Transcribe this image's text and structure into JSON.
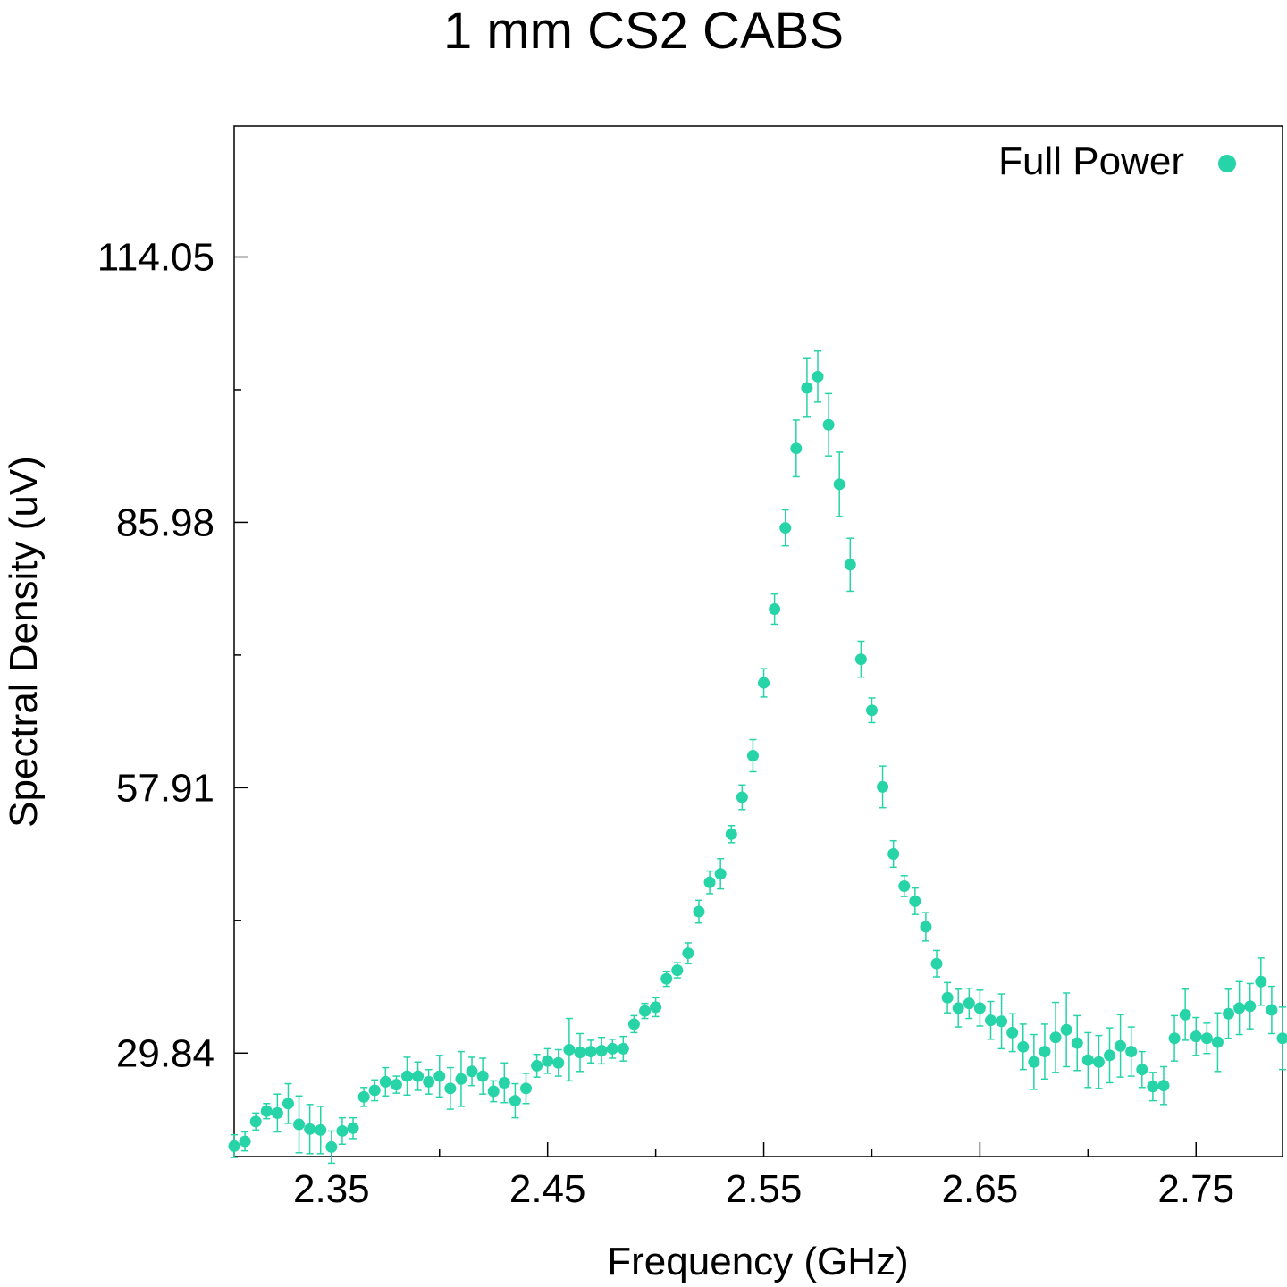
{
  "chart_data": {
    "type": "scatter",
    "title": "1 mm CS2 CABS",
    "xlabel": "Frequency (GHz)",
    "ylabel": "Spectral Density (uV)",
    "xlim": [
      2.305,
      2.79
    ],
    "ylim": [
      18.9,
      127.9
    ],
    "xticks": [
      2.35,
      2.45,
      2.55,
      2.65,
      2.75
    ],
    "xtick_labels": [
      "2.35",
      "2.45",
      "2.55",
      "2.65",
      "2.75"
    ],
    "yticks": [
      29.84,
      57.91,
      85.98,
      114.05
    ],
    "ytick_labels": [
      "29.84",
      "57.91",
      "85.98",
      "114.05"
    ],
    "grid": false,
    "legend_position": "top-right",
    "color": "#26d4a8",
    "series": [
      {
        "name": "Full Power",
        "x": [
          2.305,
          2.31,
          2.315,
          2.32,
          2.325,
          2.33,
          2.335,
          2.34,
          2.345,
          2.35,
          2.355,
          2.36,
          2.365,
          2.37,
          2.375,
          2.38,
          2.385,
          2.39,
          2.395,
          2.4,
          2.405,
          2.41,
          2.415,
          2.42,
          2.425,
          2.43,
          2.435,
          2.44,
          2.445,
          2.45,
          2.455,
          2.46,
          2.465,
          2.47,
          2.475,
          2.48,
          2.485,
          2.49,
          2.495,
          2.5,
          2.505,
          2.51,
          2.515,
          2.52,
          2.525,
          2.53,
          2.535,
          2.54,
          2.545,
          2.55,
          2.555,
          2.56,
          2.565,
          2.57,
          2.575,
          2.58,
          2.585,
          2.59,
          2.595,
          2.6,
          2.605,
          2.61,
          2.615,
          2.62,
          2.625,
          2.63,
          2.635,
          2.64,
          2.645,
          2.65,
          2.655,
          2.66,
          2.665,
          2.67,
          2.675,
          2.68,
          2.685,
          2.69,
          2.695,
          2.7,
          2.705,
          2.71,
          2.715,
          2.72,
          2.725,
          2.73,
          2.735,
          2.74,
          2.745,
          2.75,
          2.755,
          2.76,
          2.765,
          2.77,
          2.775,
          2.78,
          2.785,
          2.79
        ],
        "y": [
          20.0,
          20.5,
          22.6,
          23.7,
          23.5,
          24.5,
          22.3,
          21.8,
          21.7,
          19.9,
          21.6,
          21.9,
          25.2,
          25.9,
          26.8,
          26.5,
          27.4,
          27.4,
          26.8,
          27.4,
          26.1,
          27.1,
          27.9,
          27.4,
          25.8,
          26.7,
          24.8,
          26.1,
          28.5,
          29.0,
          28.8,
          30.2,
          29.9,
          30.0,
          30.1,
          30.3,
          30.3,
          32.9,
          34.3,
          34.7,
          37.7,
          38.6,
          40.4,
          44.8,
          47.9,
          48.8,
          53.0,
          56.9,
          61.3,
          69.0,
          76.8,
          85.4,
          93.8,
          100.2,
          101.4,
          96.3,
          90.0,
          81.5,
          71.5,
          66.1,
          58.0,
          50.9,
          47.5,
          45.9,
          43.2,
          39.3,
          35.7,
          34.6,
          35.1,
          34.6,
          33.3,
          33.2,
          32.0,
          30.5,
          28.9,
          30.0,
          31.5,
          32.3,
          30.9,
          29.1,
          28.9,
          29.6,
          30.6,
          30.0,
          28.1,
          26.3,
          26.4,
          31.4,
          33.9,
          31.6,
          31.4,
          31.0,
          34.0,
          34.6,
          34.8,
          37.4,
          34.4,
          31.4
        ],
        "err": [
          1.2,
          1.0,
          0.9,
          0.8,
          2.0,
          2.1,
          3.0,
          2.6,
          2.5,
          1.7,
          1.4,
          1.1,
          1.0,
          1.1,
          1.5,
          0.9,
          2.0,
          1.5,
          1.3,
          2.2,
          2.2,
          2.9,
          1.5,
          1.9,
          1.1,
          2.1,
          1.8,
          1.6,
          1.2,
          1.3,
          1.4,
          3.3,
          2.0,
          1.2,
          1.4,
          1.0,
          1.3,
          0.9,
          0.8,
          1.0,
          0.8,
          0.8,
          1.1,
          1.2,
          1.2,
          1.6,
          0.9,
          1.3,
          1.7,
          1.5,
          1.6,
          1.9,
          3.0,
          3.1,
          2.7,
          3.3,
          3.4,
          2.8,
          1.9,
          1.3,
          2.2,
          1.4,
          1.1,
          1.4,
          1.5,
          1.4,
          1.6,
          2.0,
          1.6,
          1.9,
          2.0,
          2.9,
          2.0,
          2.4,
          2.9,
          2.9,
          3.7,
          3.9,
          2.9,
          2.9,
          2.8,
          2.9,
          3.3,
          2.6,
          1.9,
          1.5,
          2.0,
          2.4,
          2.7,
          2.0,
          1.6,
          3.1,
          2.6,
          2.8,
          2.4,
          2.5,
          2.5,
          3.3
        ]
      }
    ]
  }
}
